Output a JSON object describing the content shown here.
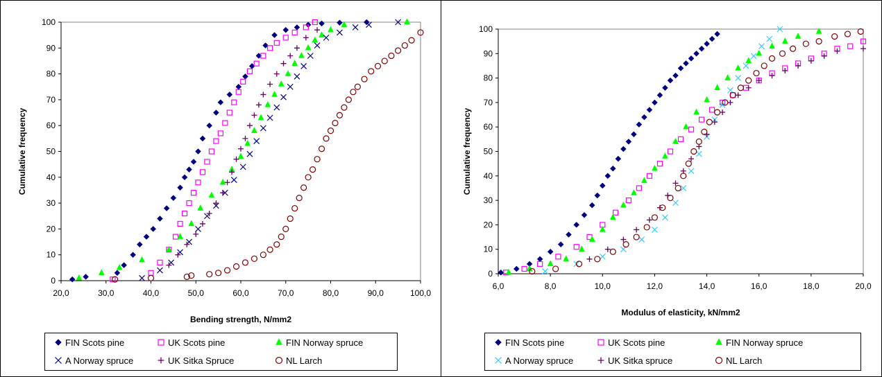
{
  "styles": {
    "FIN Scots pine": {
      "marker": "diamond-filled",
      "color": "#000080"
    },
    "UK Scots pine": {
      "marker": "square-open",
      "color": "#FF00FF"
    },
    "FIN Norway spruce": {
      "marker": "triangle-filled",
      "color": "#00FF00"
    },
    "A Norway spruce (bending)": {
      "marker": "x",
      "color": "#000080"
    },
    "A Norway spruce (MOE)": {
      "marker": "x",
      "color": "#33CCFF"
    },
    "UK Sitka Spruce": {
      "marker": "plus",
      "color": "#660066"
    },
    "NL Larch": {
      "marker": "circle-open",
      "color": "#800000"
    }
  },
  "chart_data": [
    {
      "type": "scatter",
      "title": "",
      "xlabel": "Bending strength, N/mm2",
      "ylabel": "Cumulative frequency",
      "xlim": [
        20,
        100
      ],
      "ylim": [
        0,
        100
      ],
      "x_ticks": [
        "20,0",
        "30,0",
        "40,0",
        "50,0",
        "60,0",
        "70,0",
        "80,0",
        "90,0",
        "100,0"
      ],
      "y_ticks": [
        "0",
        "10",
        "20",
        "30",
        "40",
        "50",
        "60",
        "70",
        "80",
        "90",
        "100"
      ],
      "grid": "horizontal at 100 only",
      "legend": "bottom, outside plot, 2 rows x 3 columns",
      "legend_labels": [
        "FIN Scots pine",
        "UK Scots pine",
        "FIN Norway spruce",
        "A Norway spruce",
        "UK Sitka Spruce",
        "NL Larch"
      ],
      "series": [
        {
          "name": "FIN Scots pine",
          "style": "FIN Scots pine",
          "x": [
            22.5,
            25.5,
            32.5,
            34,
            36,
            37.5,
            39,
            40.5,
            42,
            43.5,
            45,
            46.5,
            47.5,
            48.5,
            49.5,
            50.5,
            51.5,
            53,
            54.5,
            55.5,
            57.5,
            59.5,
            61,
            62.5,
            64,
            65.5,
            67.5,
            70,
            72.5,
            75,
            78,
            82,
            88
          ],
          "y": [
            0.5,
            1.5,
            3,
            6,
            10,
            14,
            17,
            20,
            24,
            28,
            32,
            36,
            40,
            43,
            46,
            50,
            55,
            60,
            65,
            69,
            72,
            75,
            79,
            83,
            87,
            91,
            95,
            97,
            98,
            99,
            99.5,
            99.8,
            100
          ]
        },
        {
          "name": "UK Scots pine",
          "style": "UK Scots pine",
          "x": [
            31.5,
            40,
            42,
            44,
            45.5,
            46.5,
            47.5,
            48.5,
            49.5,
            50.5,
            51.5,
            52.5,
            53.5,
            54.5,
            55.5,
            56.5,
            57.5,
            58.5,
            59.5,
            60.5,
            62,
            63.5,
            65,
            66.5,
            68,
            70,
            72,
            74.5,
            76.5
          ],
          "y": [
            0.5,
            3,
            7,
            12,
            17,
            22,
            26,
            30,
            34,
            38,
            42,
            46,
            50,
            54,
            57,
            61,
            65,
            69,
            73,
            77,
            81,
            84,
            87,
            90,
            92,
            94,
            96,
            98,
            100
          ]
        },
        {
          "name": "FIN Norway spruce",
          "style": "FIN Norway spruce",
          "x": [
            24,
            29,
            33,
            38,
            44,
            46.5,
            49,
            51,
            53.5,
            56,
            58,
            60,
            61.5,
            63,
            64.5,
            66,
            67.5,
            69,
            70.5,
            72,
            73.5,
            75,
            76.5,
            78,
            80,
            83,
            97
          ],
          "y": [
            1,
            3,
            5,
            8,
            12,
            17,
            22,
            28,
            33,
            38,
            43,
            48,
            53,
            58,
            63,
            68,
            72,
            76,
            80,
            84,
            87,
            90,
            93,
            95,
            97,
            99,
            100
          ]
        },
        {
          "name": "A Norway spruce",
          "style": "A Norway spruce (bending)",
          "x": [
            38,
            42,
            44.5,
            46.5,
            48.5,
            50.5,
            52.5,
            54.5,
            56.5,
            58.5,
            60.5,
            62,
            63.5,
            65,
            66.5,
            68,
            69.5,
            71,
            72.5,
            74,
            75.5,
            77,
            79,
            82,
            85.5,
            88.5,
            95
          ],
          "y": [
            1,
            4,
            7,
            11,
            15,
            20,
            25,
            29,
            34,
            39,
            44,
            49,
            54,
            59,
            63,
            67,
            71,
            75,
            79,
            83,
            87,
            91,
            94,
            96,
            98,
            99,
            100
          ]
        },
        {
          "name": "UK Sitka Spruce",
          "style": "UK Sitka Spruce",
          "x": [
            44,
            46,
            48,
            50,
            51.5,
            53,
            54.5,
            56,
            57,
            58,
            59,
            60,
            61,
            62,
            63,
            64,
            65,
            66.5,
            68,
            69.5,
            71,
            72.5,
            74.5,
            77
          ],
          "y": [
            6,
            10,
            14,
            18,
            22,
            26,
            30,
            34,
            38,
            42,
            47,
            51,
            55,
            60,
            64,
            68,
            72,
            76,
            80,
            84,
            87,
            90,
            94,
            97
          ]
        },
        {
          "name": "NL Larch",
          "style": "NL Larch",
          "x": [
            32,
            40,
            48,
            49,
            53,
            55,
            57,
            59,
            61,
            63,
            65,
            66.5,
            68,
            69,
            70,
            71,
            72,
            73,
            74,
            75,
            76,
            77,
            78,
            79,
            80,
            81,
            82,
            83,
            84,
            85,
            86,
            87.5,
            89,
            90.5,
            92,
            93.5,
            95,
            96.5,
            98,
            100
          ],
          "y": [
            0.5,
            1,
            1.5,
            2,
            2.5,
            3,
            4,
            5.5,
            7,
            8.5,
            10,
            12,
            14,
            17,
            20,
            24,
            28,
            32,
            36,
            40,
            43,
            47,
            51,
            55,
            58,
            61,
            64,
            67,
            70,
            73,
            75,
            78,
            81,
            83,
            85,
            87,
            89,
            91,
            93,
            96
          ]
        }
      ]
    },
    {
      "type": "scatter",
      "title": "",
      "xlabel": "Modulus of elasticity, kN/mm2",
      "ylabel": "Cumulative frequency",
      "xlim": [
        6,
        20
      ],
      "ylim": [
        0,
        100
      ],
      "x_ticks": [
        "6,0",
        "8,0",
        "10,0",
        "12,0",
        "14,0",
        "16,0",
        "18,0",
        "20,0"
      ],
      "y_ticks": [
        "0",
        "10",
        "20",
        "30",
        "40",
        "50",
        "60",
        "70",
        "80",
        "90",
        "100"
      ],
      "grid": "horizontal at 100 only",
      "legend": "bottom, outside plot, 2 rows x 3 columns",
      "legend_labels": [
        "FIN Scots pine",
        "UK Scots pine",
        "FIN Norway spruce",
        "A Norway spruce",
        "UK Sitka spruce",
        "NL Larch"
      ],
      "series": [
        {
          "name": "FIN Scots pine",
          "style": "FIN Scots pine",
          "x": [
            6.1,
            6.7,
            7.2,
            7.6,
            8,
            8.4,
            8.7,
            9,
            9.3,
            9.6,
            9.8,
            10,
            10.2,
            10.4,
            10.6,
            10.8,
            11,
            11.2,
            11.4,
            11.6,
            11.8,
            12,
            12.2,
            12.4,
            12.6,
            12.8,
            13,
            13.2,
            13.4,
            13.6,
            13.8,
            14,
            14.2,
            14.4
          ],
          "y": [
            0.5,
            2,
            4,
            6,
            9,
            12,
            16,
            20,
            24,
            28,
            32,
            36,
            40,
            43,
            47,
            51,
            54,
            57,
            61,
            64,
            67,
            70,
            73,
            76,
            79,
            81,
            84,
            86,
            88,
            90,
            92,
            94,
            96,
            98
          ]
        },
        {
          "name": "UK Scots pine",
          "style": "UK Scots pine",
          "x": [
            6.3,
            7,
            7.6,
            8.3,
            9,
            9.5,
            10,
            10.5,
            11,
            11.4,
            11.8,
            12.2,
            12.6,
            13,
            13.4,
            13.8,
            14.2,
            14.6,
            15,
            15.5,
            16,
            16.5,
            17,
            17.5,
            18,
            18.5,
            19,
            19.5,
            20
          ],
          "y": [
            0.5,
            2,
            4,
            7,
            11,
            15,
            20,
            25,
            30,
            35,
            40,
            45,
            50,
            55,
            59,
            63,
            67,
            70,
            73,
            76,
            79,
            82,
            84,
            86,
            88,
            90,
            92,
            93,
            95
          ]
        },
        {
          "name": "FIN Norway spruce",
          "style": "FIN Norway spruce",
          "x": [
            6.4,
            7.2,
            8,
            8.6,
            9.2,
            9.6,
            10,
            10.4,
            10.8,
            11.2,
            11.6,
            12,
            12.4,
            12.8,
            13.2,
            13.6,
            14,
            14.4,
            14.8,
            15.2,
            15.6,
            16,
            16.5,
            17,
            17.5,
            18.3
          ],
          "y": [
            0.5,
            2,
            4,
            6,
            10,
            14,
            18,
            23,
            28,
            33,
            38,
            43,
            48,
            54,
            60,
            66,
            71,
            76,
            80,
            84,
            87,
            90,
            93,
            95,
            97,
            99
          ]
        },
        {
          "name": "A Norway spruce",
          "style": "A Norway spruce (MOE)",
          "x": [
            7.8,
            9,
            10,
            10.8,
            11.5,
            12,
            12.4,
            12.8,
            13.1,
            13.4,
            13.7,
            14,
            14.3,
            14.6,
            14.9,
            15.2,
            15.5,
            15.8,
            16.1,
            16.4,
            16.8
          ],
          "y": [
            1,
            4,
            7,
            10,
            14,
            18,
            23,
            29,
            35,
            42,
            49,
            56,
            63,
            69,
            75,
            80,
            85,
            89,
            93,
            96,
            100
          ]
        },
        {
          "name": "UK Sitka spruce",
          "style": "UK Sitka Spruce",
          "x": [
            9.5,
            10.2,
            10.8,
            11.3,
            11.8,
            12.2,
            12.5,
            12.8,
            13.1,
            13.4,
            13.7,
            14,
            14.3,
            14.6,
            14.9,
            15.2,
            15.6,
            16,
            16.5,
            17,
            17.5,
            18,
            18.5,
            19,
            20
          ],
          "y": [
            6,
            10,
            14,
            18,
            22,
            27,
            32,
            37,
            42,
            47,
            52,
            57,
            62,
            66,
            70,
            73,
            76,
            79,
            81,
            83,
            85,
            87,
            89,
            91,
            92
          ]
        },
        {
          "name": "NL Larch",
          "style": "NL Larch",
          "x": [
            7.3,
            8.2,
            9.1,
            9.8,
            10.4,
            10.9,
            11.3,
            11.7,
            12,
            12.3,
            12.6,
            12.9,
            13.1,
            13.3,
            13.5,
            13.7,
            13.9,
            14.1,
            14.4,
            14.7,
            15,
            15.3,
            15.6,
            15.9,
            16.2,
            16.5,
            16.9,
            17.3,
            17.8,
            18.3,
            18.9,
            19.4,
            19.9,
            20.2
          ],
          "y": [
            1,
            2,
            4,
            6,
            9,
            12,
            15,
            19,
            23,
            27,
            31,
            35,
            40,
            45,
            50,
            54,
            58,
            62,
            66,
            70,
            73,
            76,
            79,
            82,
            85,
            88,
            90,
            92,
            94,
            95,
            97,
            98,
            99,
            100
          ]
        }
      ]
    }
  ]
}
